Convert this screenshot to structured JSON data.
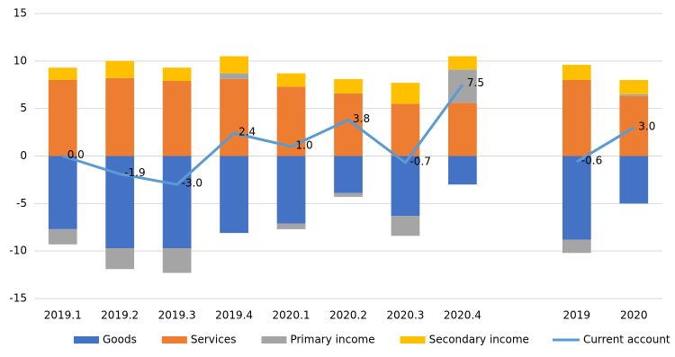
{
  "chart_data": {
    "type": "bar",
    "categories": [
      "2019.1",
      "2019.2",
      "2019.3",
      "2019.4",
      "2020.1",
      "2020.2",
      "2020.3",
      "2020.4",
      null,
      "2019",
      "2020"
    ],
    "series": [
      {
        "name": "Goods",
        "color": "#4472c4",
        "values": [
          -7.7,
          -9.7,
          -9.7,
          -8.1,
          -7.1,
          -3.9,
          -6.3,
          -3.0,
          null,
          -8.8,
          -5.0
        ]
      },
      {
        "name": "Services",
        "color": "#ed7d31",
        "values": [
          8.0,
          8.2,
          7.9,
          8.1,
          7.3,
          6.6,
          5.5,
          5.6,
          null,
          8.0,
          6.3
        ]
      },
      {
        "name": "Primary income",
        "color": "#a5a5a5",
        "values": [
          -1.6,
          -2.2,
          -2.6,
          0.6,
          -0.6,
          -0.4,
          -2.1,
          3.5,
          null,
          -1.4,
          0.2
        ]
      },
      {
        "name": "Secondary income",
        "color": "#ffc000",
        "values": [
          1.3,
          1.8,
          1.4,
          1.8,
          1.4,
          1.5,
          2.2,
          1.4,
          null,
          1.6,
          1.5
        ]
      },
      {
        "name": "Current account",
        "color": "#5b9bd5",
        "type": "line",
        "values": [
          0.0,
          -1.9,
          -3.0,
          2.4,
          1.0,
          3.8,
          -0.7,
          7.5,
          null,
          -0.6,
          3.0
        ],
        "value_labels": [
          "0.0",
          "-1.9",
          "-3.0",
          "2.4",
          "1.0",
          "3.8",
          "-0.7",
          "7.5",
          null,
          "-0.6",
          "3.0"
        ]
      }
    ],
    "ylim": [
      -15,
      15
    ],
    "yticks": [
      -15,
      -10,
      -5,
      0,
      5,
      10,
      15
    ],
    "grid": true,
    "legend": "bottom"
  }
}
